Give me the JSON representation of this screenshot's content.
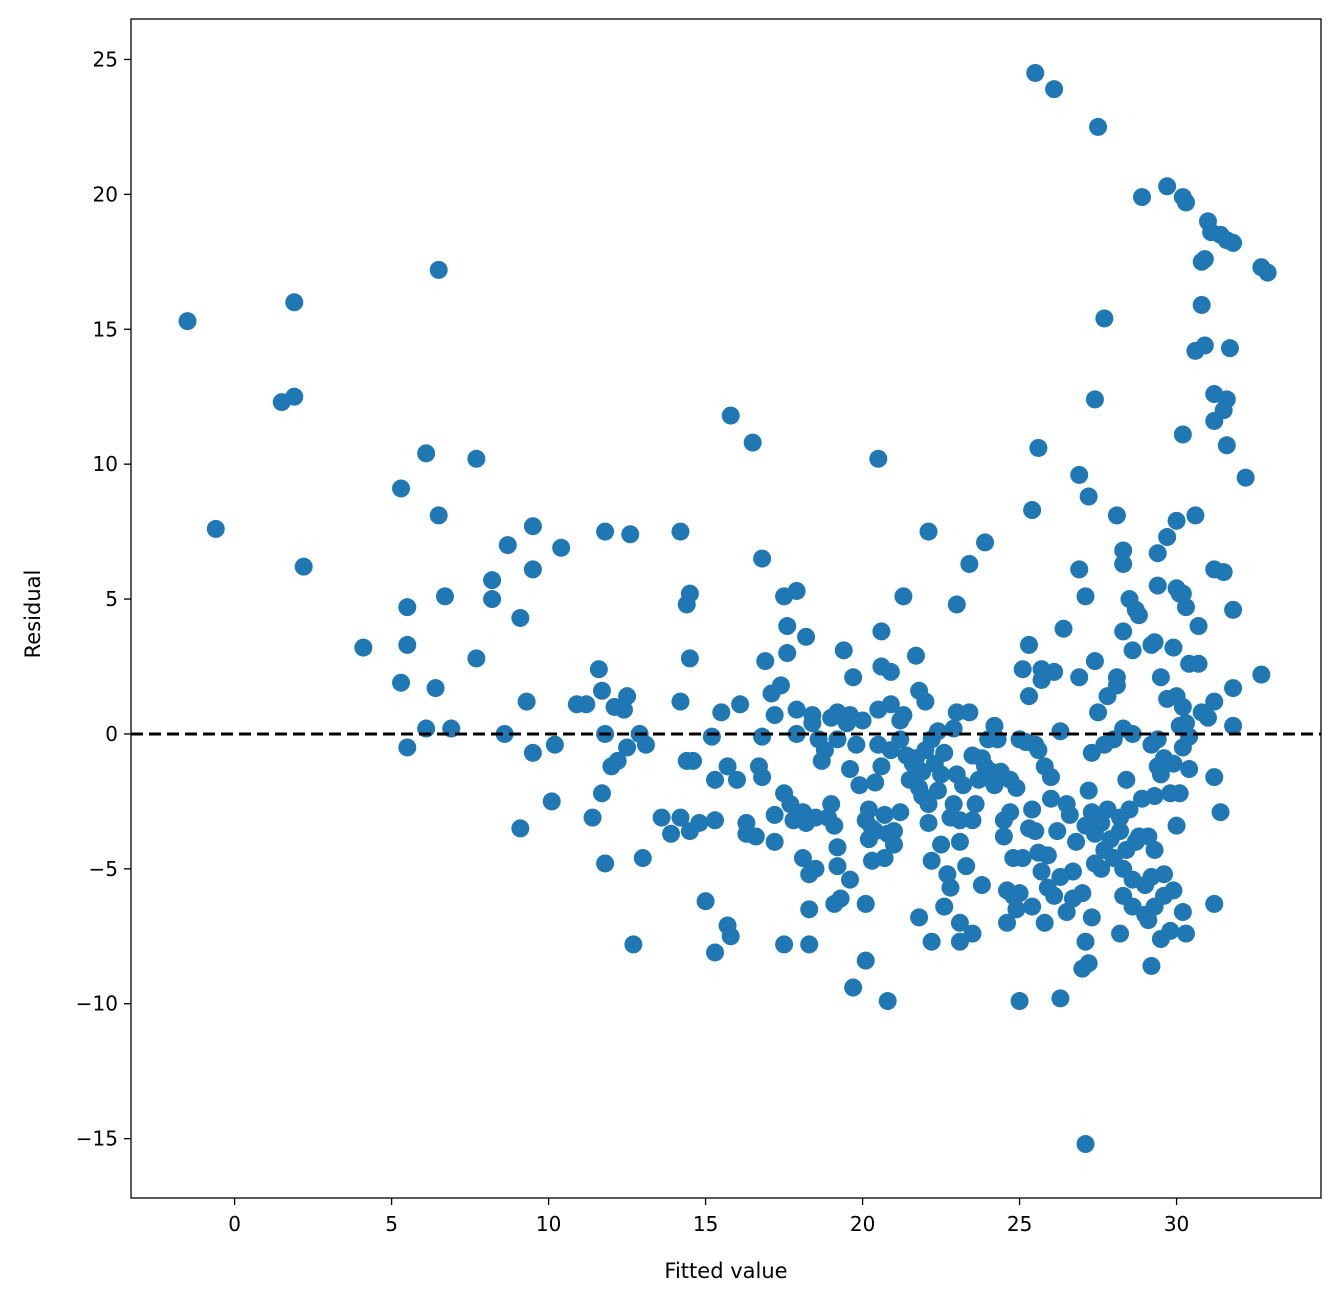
{
  "chart_data": {
    "type": "scatter",
    "title": "",
    "xlabel": "Fitted value",
    "ylabel": "Residual",
    "xlim": [
      -3.3,
      34.6
    ],
    "ylim": [
      -17.2,
      26.5
    ],
    "xticks": [
      0,
      5,
      10,
      15,
      20,
      25,
      30
    ],
    "yticks": [
      -15,
      -10,
      -5,
      0,
      5,
      10,
      15,
      20,
      25
    ],
    "xtick_labels": [
      "0",
      "5",
      "10",
      "15",
      "20",
      "25",
      "30"
    ],
    "ytick_labels": [
      "−15",
      "−10",
      "−5",
      "0",
      "5",
      "10",
      "15",
      "20",
      "25"
    ],
    "reference_line": {
      "y": 0,
      "style": "dashed",
      "color": "#000000"
    },
    "grid": false,
    "marker_color": "#1f77b4",
    "points": [
      [
        -1.5,
        15.3
      ],
      [
        -0.6,
        7.6
      ],
      [
        1.5,
        12.3
      ],
      [
        1.9,
        12.5
      ],
      [
        1.9,
        16.0
      ],
      [
        2.2,
        6.2
      ],
      [
        4.1,
        3.2
      ],
      [
        5.3,
        9.1
      ],
      [
        5.3,
        1.9
      ],
      [
        5.5,
        4.7
      ],
      [
        5.5,
        3.3
      ],
      [
        5.5,
        -0.5
      ],
      [
        6.1,
        10.4
      ],
      [
        6.1,
        0.2
      ],
      [
        6.4,
        1.7
      ],
      [
        6.5,
        17.2
      ],
      [
        6.5,
        8.1
      ],
      [
        6.7,
        5.1
      ],
      [
        6.9,
        0.2
      ],
      [
        7.7,
        10.2
      ],
      [
        7.7,
        2.8
      ],
      [
        8.2,
        5.7
      ],
      [
        8.2,
        5.0
      ],
      [
        8.6,
        0.0
      ],
      [
        8.7,
        7.0
      ],
      [
        9.1,
        4.3
      ],
      [
        9.1,
        -3.5
      ],
      [
        9.3,
        1.2
      ],
      [
        9.5,
        7.7
      ],
      [
        9.5,
        6.1
      ],
      [
        9.5,
        -0.7
      ],
      [
        10.2,
        -0.4
      ],
      [
        10.4,
        6.9
      ],
      [
        10.1,
        -2.5
      ],
      [
        10.9,
        1.1
      ],
      [
        11.2,
        1.1
      ],
      [
        11.4,
        -3.1
      ],
      [
        11.6,
        2.4
      ],
      [
        11.7,
        1.6
      ],
      [
        11.7,
        -2.2
      ],
      [
        11.8,
        7.5
      ],
      [
        11.8,
        0.0
      ],
      [
        11.8,
        -4.8
      ],
      [
        12.0,
        -1.2
      ],
      [
        12.1,
        1.0
      ],
      [
        12.2,
        -1.0
      ],
      [
        12.4,
        0.9
      ],
      [
        12.5,
        1.4
      ],
      [
        12.6,
        7.4
      ],
      [
        12.5,
        -0.5
      ],
      [
        12.7,
        -7.8
      ],
      [
        12.9,
        0.0
      ],
      [
        13.0,
        -4.6
      ],
      [
        13.1,
        -0.4
      ],
      [
        13.6,
        -3.1
      ],
      [
        13.9,
        -3.7
      ],
      [
        14.2,
        7.5
      ],
      [
        14.2,
        1.2
      ],
      [
        14.2,
        -3.1
      ],
      [
        14.4,
        4.8
      ],
      [
        14.5,
        5.2
      ],
      [
        14.5,
        2.8
      ],
      [
        14.4,
        -1.0
      ],
      [
        14.6,
        -1.0
      ],
      [
        14.5,
        -3.6
      ],
      [
        14.8,
        -3.3
      ],
      [
        15.0,
        -6.2
      ],
      [
        15.2,
        -0.1
      ],
      [
        15.3,
        -1.7
      ],
      [
        15.3,
        -3.2
      ],
      [
        15.3,
        -8.1
      ],
      [
        15.5,
        0.8
      ],
      [
        15.7,
        -1.2
      ],
      [
        15.7,
        -7.1
      ],
      [
        15.8,
        11.8
      ],
      [
        15.8,
        -7.5
      ],
      [
        16.0,
        -1.7
      ],
      [
        16.1,
        1.1
      ],
      [
        16.3,
        -3.7
      ],
      [
        16.3,
        -3.3
      ],
      [
        16.5,
        10.8
      ],
      [
        16.6,
        -3.8
      ],
      [
        16.8,
        6.5
      ],
      [
        16.7,
        -1.2
      ],
      [
        16.8,
        -1.6
      ],
      [
        16.8,
        -0.1
      ],
      [
        16.9,
        2.7
      ],
      [
        17.1,
        1.5
      ],
      [
        17.2,
        -3.0
      ],
      [
        17.2,
        0.7
      ],
      [
        17.2,
        -4.0
      ],
      [
        17.4,
        1.8
      ],
      [
        17.5,
        5.1
      ],
      [
        17.5,
        -2.2
      ],
      [
        17.5,
        -7.8
      ],
      [
        17.6,
        4.0
      ],
      [
        17.6,
        3.0
      ],
      [
        17.7,
        -2.6
      ],
      [
        17.8,
        -3.2
      ],
      [
        17.9,
        5.3
      ],
      [
        17.9,
        0.9
      ],
      [
        17.9,
        0.0
      ],
      [
        18.1,
        -2.9
      ],
      [
        18.1,
        -4.6
      ],
      [
        18.2,
        3.6
      ],
      [
        18.2,
        -3.3
      ],
      [
        18.3,
        -5.2
      ],
      [
        18.3,
        -6.5
      ],
      [
        18.3,
        -7.8
      ],
      [
        18.4,
        0.7
      ],
      [
        18.4,
        0.4
      ],
      [
        18.5,
        -3.1
      ],
      [
        18.5,
        -5.0
      ],
      [
        18.6,
        -0.2
      ],
      [
        18.7,
        -1.0
      ],
      [
        18.8,
        -0.6
      ],
      [
        18.9,
        -3.1
      ],
      [
        19.0,
        0.6
      ],
      [
        19.0,
        -2.6
      ],
      [
        19.1,
        -6.3
      ],
      [
        19.1,
        -3.4
      ],
      [
        19.2,
        0.8
      ],
      [
        19.2,
        -0.2
      ],
      [
        19.2,
        -4.2
      ],
      [
        19.2,
        -4.9
      ],
      [
        19.3,
        -6.1
      ],
      [
        19.4,
        3.1
      ],
      [
        19.4,
        0.6
      ],
      [
        19.5,
        0.4
      ],
      [
        19.6,
        0.7
      ],
      [
        19.6,
        -1.3
      ],
      [
        19.6,
        -5.4
      ],
      [
        19.7,
        2.1
      ],
      [
        19.7,
        -9.4
      ],
      [
        19.8,
        -0.4
      ],
      [
        19.9,
        -1.9
      ],
      [
        20.0,
        0.5
      ],
      [
        20.1,
        -3.2
      ],
      [
        20.1,
        -6.3
      ],
      [
        20.1,
        -8.4
      ],
      [
        20.2,
        -2.8
      ],
      [
        20.2,
        -3.9
      ],
      [
        20.3,
        -3.5
      ],
      [
        20.3,
        -4.7
      ],
      [
        20.4,
        -1.8
      ],
      [
        20.4,
        -3.6
      ],
      [
        20.5,
        10.2
      ],
      [
        20.5,
        0.9
      ],
      [
        20.5,
        -0.4
      ],
      [
        20.6,
        3.8
      ],
      [
        20.6,
        2.5
      ],
      [
        20.6,
        -1.2
      ],
      [
        20.7,
        -3.0
      ],
      [
        20.7,
        -4.6
      ],
      [
        20.8,
        -9.9
      ],
      [
        20.8,
        -3.7
      ],
      [
        20.9,
        2.3
      ],
      [
        20.9,
        1.1
      ],
      [
        20.9,
        -0.6
      ],
      [
        21.0,
        -3.6
      ],
      [
        21.0,
        -4.1
      ],
      [
        21.2,
        0.5
      ],
      [
        21.2,
        -0.2
      ],
      [
        21.2,
        -2.9
      ],
      [
        21.3,
        5.1
      ],
      [
        21.3,
        0.7
      ],
      [
        21.4,
        -0.8
      ],
      [
        21.5,
        -1.7
      ],
      [
        21.6,
        -1.1
      ],
      [
        21.7,
        2.9
      ],
      [
        21.7,
        -0.9
      ],
      [
        21.8,
        1.6
      ],
      [
        21.8,
        -2.0
      ],
      [
        21.8,
        -6.8
      ],
      [
        21.9,
        -2.3
      ],
      [
        21.9,
        -1.4
      ],
      [
        22.0,
        1.2
      ],
      [
        22.0,
        -0.6
      ],
      [
        22.1,
        7.5
      ],
      [
        22.1,
        -2.6
      ],
      [
        22.1,
        -3.3
      ],
      [
        22.2,
        -0.2
      ],
      [
        22.2,
        -4.7
      ],
      [
        22.2,
        -7.7
      ],
      [
        22.3,
        -1.1
      ],
      [
        22.4,
        0.1
      ],
      [
        22.4,
        -2.1
      ],
      [
        22.5,
        -4.1
      ],
      [
        22.5,
        -1.5
      ],
      [
        22.6,
        -0.7
      ],
      [
        22.6,
        -6.4
      ],
      [
        22.7,
        -5.2
      ],
      [
        22.8,
        -3.1
      ],
      [
        22.8,
        -5.7
      ],
      [
        22.9,
        0.2
      ],
      [
        22.9,
        -2.6
      ],
      [
        23.0,
        4.8
      ],
      [
        23.0,
        0.8
      ],
      [
        23.0,
        -1.5
      ],
      [
        23.1,
        -3.2
      ],
      [
        23.1,
        -4.0
      ],
      [
        23.1,
        -7.0
      ],
      [
        23.1,
        -7.7
      ],
      [
        23.2,
        -1.9
      ],
      [
        23.3,
        -4.9
      ],
      [
        23.4,
        6.3
      ],
      [
        23.4,
        0.8
      ],
      [
        23.5,
        -3.2
      ],
      [
        23.5,
        -0.8
      ],
      [
        23.5,
        -7.4
      ],
      [
        23.6,
        -2.6
      ],
      [
        23.7,
        -1.7
      ],
      [
        23.8,
        -0.9
      ],
      [
        23.8,
        -5.6
      ],
      [
        23.9,
        7.1
      ],
      [
        23.9,
        -1.2
      ],
      [
        24.0,
        -0.2
      ],
      [
        24.1,
        -1.4
      ],
      [
        24.2,
        0.3
      ],
      [
        24.2,
        -1.9
      ],
      [
        24.3,
        -0.2
      ],
      [
        24.4,
        -1.4
      ],
      [
        24.5,
        -3.2
      ],
      [
        24.5,
        -3.8
      ],
      [
        24.6,
        -5.8
      ],
      [
        24.6,
        -7.0
      ],
      [
        24.7,
        -1.7
      ],
      [
        24.7,
        -2.9
      ],
      [
        24.8,
        -4.6
      ],
      [
        24.8,
        -6.0
      ],
      [
        24.9,
        -6.5
      ],
      [
        24.9,
        -2.0
      ],
      [
        25.0,
        -0.2
      ],
      [
        25.0,
        -9.9
      ],
      [
        25.0,
        -5.9
      ],
      [
        25.1,
        2.4
      ],
      [
        25.1,
        -4.6
      ],
      [
        25.2,
        -0.3
      ],
      [
        25.3,
        3.3
      ],
      [
        25.3,
        1.4
      ],
      [
        25.3,
        -3.5
      ],
      [
        25.4,
        8.3
      ],
      [
        25.4,
        -2.8
      ],
      [
        25.4,
        -6.4
      ],
      [
        25.5,
        24.5
      ],
      [
        25.5,
        -0.4
      ],
      [
        25.5,
        -3.6
      ],
      [
        25.6,
        10.6
      ],
      [
        25.6,
        -0.6
      ],
      [
        25.6,
        -4.4
      ],
      [
        25.7,
        2.0
      ],
      [
        25.7,
        2.4
      ],
      [
        25.7,
        -5.1
      ],
      [
        25.8,
        -7.0
      ],
      [
        25.8,
        -1.2
      ],
      [
        25.9,
        -4.5
      ],
      [
        25.9,
        -5.7
      ],
      [
        26.0,
        -1.6
      ],
      [
        26.0,
        -2.4
      ],
      [
        26.1,
        23.9
      ],
      [
        26.1,
        2.3
      ],
      [
        26.1,
        -6.0
      ],
      [
        26.2,
        -3.6
      ],
      [
        26.3,
        -5.3
      ],
      [
        26.3,
        -9.8
      ],
      [
        26.3,
        0.1
      ],
      [
        26.4,
        3.9
      ],
      [
        26.5,
        -2.6
      ],
      [
        26.5,
        -6.6
      ],
      [
        26.6,
        -3.0
      ],
      [
        26.7,
        -5.1
      ],
      [
        26.7,
        -6.1
      ],
      [
        26.8,
        -4.0
      ],
      [
        26.9,
        9.6
      ],
      [
        26.9,
        6.1
      ],
      [
        26.9,
        2.1
      ],
      [
        27.0,
        -5.9
      ],
      [
        27.0,
        -8.7
      ],
      [
        27.1,
        -7.7
      ],
      [
        27.1,
        -15.2
      ],
      [
        27.1,
        5.1
      ],
      [
        27.1,
        -3.4
      ],
      [
        27.2,
        8.8
      ],
      [
        27.2,
        -2.1
      ],
      [
        27.2,
        -8.5
      ],
      [
        27.3,
        -0.7
      ],
      [
        27.3,
        -2.9
      ],
      [
        27.3,
        -6.8
      ],
      [
        27.4,
        2.7
      ],
      [
        27.4,
        -3.7
      ],
      [
        27.4,
        12.4
      ],
      [
        27.4,
        -4.8
      ],
      [
        27.5,
        22.5
      ],
      [
        27.5,
        0.8
      ],
      [
        27.6,
        -3.3
      ],
      [
        27.6,
        -5.0
      ],
      [
        27.7,
        15.4
      ],
      [
        27.7,
        -0.4
      ],
      [
        27.7,
        -4.3
      ],
      [
        27.8,
        1.4
      ],
      [
        27.8,
        -2.8
      ],
      [
        27.9,
        -3.9
      ],
      [
        28.0,
        -4.6
      ],
      [
        28.0,
        -0.2
      ],
      [
        28.1,
        8.1
      ],
      [
        28.1,
        2.1
      ],
      [
        28.1,
        1.8
      ],
      [
        28.2,
        -3.1
      ],
      [
        28.2,
        -3.6
      ],
      [
        28.2,
        -7.4
      ],
      [
        28.3,
        6.8
      ],
      [
        28.3,
        6.3
      ],
      [
        28.3,
        3.8
      ],
      [
        28.3,
        0.2
      ],
      [
        28.3,
        -5.0
      ],
      [
        28.3,
        -6.0
      ],
      [
        28.4,
        -1.7
      ],
      [
        28.4,
        -4.3
      ],
      [
        28.5,
        5.0
      ],
      [
        28.5,
        -2.8
      ],
      [
        28.6,
        3.1
      ],
      [
        28.6,
        0.0
      ],
      [
        28.6,
        -5.4
      ],
      [
        28.6,
        -6.4
      ],
      [
        28.7,
        4.6
      ],
      [
        28.7,
        -4.0
      ],
      [
        28.8,
        4.4
      ],
      [
        28.8,
        -3.8
      ],
      [
        28.9,
        19.9
      ],
      [
        28.9,
        -2.4
      ],
      [
        29.0,
        -5.6
      ],
      [
        29.0,
        -6.7
      ],
      [
        29.1,
        -3.8
      ],
      [
        29.1,
        -6.9
      ],
      [
        29.2,
        3.3
      ],
      [
        29.2,
        -0.4
      ],
      [
        29.2,
        -5.3
      ],
      [
        29.2,
        -8.6
      ],
      [
        29.3,
        3.4
      ],
      [
        29.3,
        -4.3
      ],
      [
        29.3,
        -6.4
      ],
      [
        29.3,
        -2.3
      ],
      [
        29.4,
        6.7
      ],
      [
        29.4,
        5.5
      ],
      [
        29.4,
        -0.2
      ],
      [
        29.4,
        -1.2
      ],
      [
        29.5,
        2.1
      ],
      [
        29.5,
        -1.5
      ],
      [
        29.5,
        -7.6
      ],
      [
        29.6,
        -0.9
      ],
      [
        29.6,
        -5.2
      ],
      [
        29.6,
        -6.0
      ],
      [
        29.7,
        20.3
      ],
      [
        29.7,
        7.3
      ],
      [
        29.7,
        1.3
      ],
      [
        29.8,
        -2.2
      ],
      [
        29.8,
        -7.3
      ],
      [
        29.9,
        3.2
      ],
      [
        29.9,
        -1.1
      ],
      [
        29.9,
        -5.8
      ],
      [
        30.0,
        7.9
      ],
      [
        30.0,
        5.4
      ],
      [
        30.0,
        1.4
      ],
      [
        30.0,
        -3.4
      ],
      [
        30.1,
        5.2
      ],
      [
        30.1,
        0.3
      ],
      [
        30.1,
        -2.2
      ],
      [
        30.2,
        19.9
      ],
      [
        30.2,
        11.1
      ],
      [
        30.2,
        5.2
      ],
      [
        30.2,
        1.0
      ],
      [
        30.2,
        -0.5
      ],
      [
        30.2,
        -6.6
      ],
      [
        30.3,
        19.7
      ],
      [
        30.3,
        4.7
      ],
      [
        30.3,
        0.4
      ],
      [
        30.3,
        -7.4
      ],
      [
        30.4,
        2.6
      ],
      [
        30.4,
        -0.1
      ],
      [
        30.4,
        -1.3
      ],
      [
        30.6,
        14.2
      ],
      [
        30.6,
        8.1
      ],
      [
        30.7,
        4.0
      ],
      [
        30.7,
        2.6
      ],
      [
        30.8,
        17.5
      ],
      [
        30.8,
        15.9
      ],
      [
        30.8,
        0.8
      ],
      [
        30.9,
        17.6
      ],
      [
        30.9,
        14.4
      ],
      [
        31.0,
        19.0
      ],
      [
        31.0,
        0.6
      ],
      [
        31.1,
        18.6
      ],
      [
        31.2,
        12.6
      ],
      [
        31.2,
        11.6
      ],
      [
        31.2,
        6.1
      ],
      [
        31.2,
        1.2
      ],
      [
        31.2,
        -1.6
      ],
      [
        31.2,
        -6.3
      ],
      [
        31.4,
        18.5
      ],
      [
        31.4,
        -2.9
      ],
      [
        31.5,
        12.0
      ],
      [
        31.5,
        6.0
      ],
      [
        31.6,
        18.3
      ],
      [
        31.6,
        12.4
      ],
      [
        31.6,
        10.7
      ],
      [
        31.7,
        14.3
      ],
      [
        31.8,
        18.2
      ],
      [
        31.8,
        4.6
      ],
      [
        31.8,
        1.7
      ],
      [
        31.8,
        0.3
      ],
      [
        32.2,
        9.5
      ],
      [
        32.7,
        17.3
      ],
      [
        32.7,
        2.2
      ],
      [
        32.9,
        17.1
      ]
    ]
  }
}
